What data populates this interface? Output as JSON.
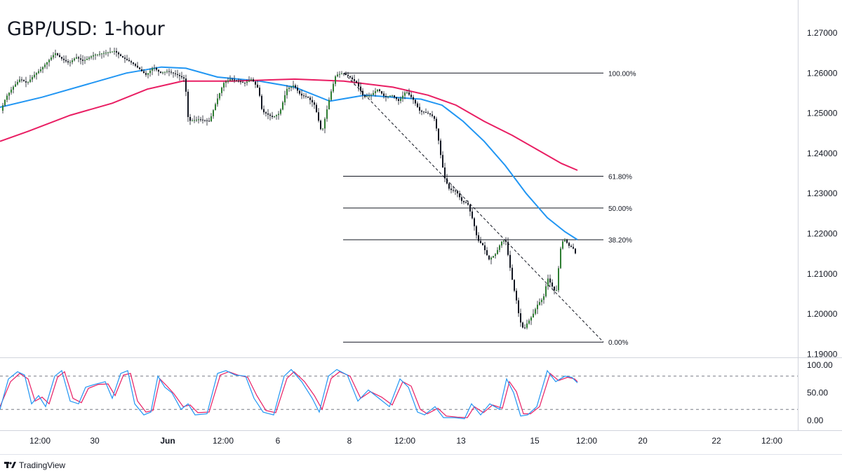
{
  "title": "GBP/USD: 1-hour",
  "brand": {
    "name": "TradingView",
    "logo_icon": "tradingview-logo-icon"
  },
  "chart_data": {
    "type": "line",
    "symbol": "GBP/USD",
    "timeframe": "1-hour",
    "price_axis": {
      "ticks": [
        "1.27000",
        "1.26000",
        "1.25000",
        "1.24000",
        "1.23000",
        "1.22000",
        "1.21000",
        "1.20000",
        "1.19000"
      ],
      "range": [
        1.1885,
        1.2783
      ]
    },
    "time_axis": {
      "ticks": [
        "12:00",
        "30",
        "Jun",
        "12:00",
        "6",
        "8",
        "12:00",
        "13",
        "15",
        "12:00",
        "20",
        "22",
        "12:00"
      ],
      "major_ticks": [
        "30",
        "Jun",
        "6",
        "8",
        "13",
        "15",
        "20",
        "22"
      ]
    },
    "price_path": [
      [
        0,
        1.2495
      ],
      [
        10,
        1.254
      ],
      [
        20,
        1.2565
      ],
      [
        30,
        1.2585
      ],
      [
        40,
        1.2575
      ],
      [
        50,
        1.2595
      ],
      [
        60,
        1.261
      ],
      [
        70,
        1.263
      ],
      [
        80,
        1.265
      ],
      [
        90,
        1.2635
      ],
      [
        100,
        1.2625
      ],
      [
        110,
        1.264
      ],
      [
        120,
        1.263
      ],
      [
        135,
        1.2645
      ],
      [
        150,
        1.265
      ],
      [
        165,
        1.2655
      ],
      [
        175,
        1.264
      ],
      [
        190,
        1.2625
      ],
      [
        200,
        1.261
      ],
      [
        210,
        1.2595
      ],
      [
        220,
        1.2615
      ],
      [
        230,
        1.26
      ],
      [
        240,
        1.2605
      ],
      [
        255,
        1.2595
      ],
      [
        265,
        1.2585
      ],
      [
        270,
        1.248
      ],
      [
        285,
        1.2485
      ],
      [
        300,
        1.248
      ],
      [
        310,
        1.253
      ],
      [
        320,
        1.2575
      ],
      [
        330,
        1.2585
      ],
      [
        340,
        1.258
      ],
      [
        350,
        1.2575
      ],
      [
        360,
        1.2585
      ],
      [
        370,
        1.256
      ],
      [
        375,
        1.2505
      ],
      [
        390,
        1.249
      ],
      [
        400,
        1.25
      ],
      [
        410,
        1.256
      ],
      [
        420,
        1.257
      ],
      [
        430,
        1.2545
      ],
      [
        440,
        1.254
      ],
      [
        450,
        1.252
      ],
      [
        460,
        1.245
      ],
      [
        465,
        1.249
      ],
      [
        472,
        1.2545
      ],
      [
        480,
        1.2595
      ],
      [
        490,
        1.26
      ],
      [
        500,
        1.259
      ],
      [
        510,
        1.2575
      ],
      [
        520,
        1.254
      ],
      [
        530,
        1.2545
      ],
      [
        540,
        1.256
      ],
      [
        550,
        1.254
      ],
      [
        560,
        1.2545
      ],
      [
        570,
        1.253
      ],
      [
        580,
        1.2555
      ],
      [
        590,
        1.2535
      ],
      [
        600,
        1.2505
      ],
      [
        612,
        1.25
      ],
      [
        620,
        1.249
      ],
      [
        625,
        1.245
      ],
      [
        630,
        1.239
      ],
      [
        635,
        1.234
      ],
      [
        642,
        1.231
      ],
      [
        652,
        1.2305
      ],
      [
        660,
        1.228
      ],
      [
        668,
        1.2275
      ],
      [
        676,
        1.223
      ],
      [
        682,
        1.2185
      ],
      [
        690,
        1.217
      ],
      [
        698,
        1.2135
      ],
      [
        708,
        1.215
      ],
      [
        716,
        1.218
      ],
      [
        722,
        1.2185
      ],
      [
        728,
        1.212
      ],
      [
        733,
        1.207
      ],
      [
        738,
        1.203
      ],
      [
        742,
        1.1985
      ],
      [
        748,
        1.196
      ],
      [
        752,
        1.1975
      ],
      [
        760,
        1.1995
      ],
      [
        768,
        1.2025
      ],
      [
        776,
        1.204
      ],
      [
        782,
        1.209
      ],
      [
        788,
        1.207
      ],
      [
        794,
        1.205
      ],
      [
        800,
        1.216
      ],
      [
        805,
        1.219
      ],
      [
        812,
        1.217
      ],
      [
        818,
        1.2165
      ],
      [
        823,
        1.2145
      ]
    ],
    "moving_averages": [
      {
        "color": "#2196f3",
        "points": [
          [
            0,
            1.2515
          ],
          [
            60,
            1.254
          ],
          [
            120,
            1.257
          ],
          [
            180,
            1.26
          ],
          [
            230,
            1.2615
          ],
          [
            265,
            1.2612
          ],
          [
            310,
            1.259
          ],
          [
            370,
            1.258
          ],
          [
            420,
            1.2565
          ],
          [
            470,
            1.253
          ],
          [
            520,
            1.2545
          ],
          [
            560,
            1.254
          ],
          [
            600,
            1.2535
          ],
          [
            630,
            1.252
          ],
          [
            660,
            1.248
          ],
          [
            690,
            1.243
          ],
          [
            720,
            1.237
          ],
          [
            750,
            1.23
          ],
          [
            780,
            1.224
          ],
          [
            805,
            1.2205
          ],
          [
            823,
            1.2185
          ]
        ]
      },
      {
        "color": "#e91e63",
        "points": [
          [
            0,
            1.243
          ],
          [
            40,
            1.2455
          ],
          [
            100,
            1.2495
          ],
          [
            160,
            1.2525
          ],
          [
            210,
            1.256
          ],
          [
            260,
            1.258
          ],
          [
            330,
            1.258
          ],
          [
            420,
            1.2585
          ],
          [
            490,
            1.258
          ],
          [
            560,
            1.2565
          ],
          [
            610,
            1.2545
          ],
          [
            650,
            1.252
          ],
          [
            690,
            1.248
          ],
          [
            730,
            1.2445
          ],
          [
            770,
            1.2405
          ],
          [
            800,
            1.2375
          ],
          [
            823,
            1.2358
          ]
        ]
      }
    ],
    "fibonacci": {
      "color": "#131722",
      "levels": [
        {
          "label": "100.00%",
          "price": 1.26
        },
        {
          "label": "61.80%",
          "price": 1.2343
        },
        {
          "label": "50.00%",
          "price": 1.2264
        },
        {
          "label": "38.20%",
          "price": 1.2185
        },
        {
          "label": "0.00%",
          "price": 1.193
        }
      ],
      "trend_line": {
        "from": [
          490,
          1.26
        ],
        "to": [
          860,
          1.193
        ]
      }
    },
    "oscillator": {
      "type": "stochastic",
      "ticks": [
        "100.00",
        "50.00",
        "0.00"
      ],
      "range": [
        0,
        100
      ],
      "overbought": 80,
      "oversold": 20,
      "k_color": "#2196f3",
      "d_color": "#e91e63",
      "k": [
        [
          0,
          20
        ],
        [
          12,
          75
        ],
        [
          25,
          88
        ],
        [
          35,
          82
        ],
        [
          45,
          30
        ],
        [
          55,
          45
        ],
        [
          65,
          25
        ],
        [
          78,
          80
        ],
        [
          88,
          90
        ],
        [
          100,
          35
        ],
        [
          112,
          30
        ],
        [
          122,
          60
        ],
        [
          135,
          65
        ],
        [
          150,
          70
        ],
        [
          160,
          40
        ],
        [
          172,
          85
        ],
        [
          182,
          90
        ],
        [
          192,
          30
        ],
        [
          205,
          10
        ],
        [
          215,
          15
        ],
        [
          225,
          80
        ],
        [
          235,
          60
        ],
        [
          245,
          50
        ],
        [
          258,
          20
        ],
        [
          268,
          30
        ],
        [
          278,
          10
        ],
        [
          295,
          12
        ],
        [
          310,
          85
        ],
        [
          322,
          90
        ],
        [
          335,
          82
        ],
        [
          350,
          80
        ],
        [
          362,
          40
        ],
        [
          375,
          15
        ],
        [
          390,
          10
        ],
        [
          405,
          80
        ],
        [
          415,
          92
        ],
        [
          430,
          70
        ],
        [
          445,
          40
        ],
        [
          455,
          15
        ],
        [
          468,
          80
        ],
        [
          480,
          92
        ],
        [
          495,
          82
        ],
        [
          510,
          35
        ],
        [
          525,
          55
        ],
        [
          540,
          40
        ],
        [
          555,
          25
        ],
        [
          570,
          75
        ],
        [
          582,
          60
        ],
        [
          595,
          15
        ],
        [
          605,
          10
        ],
        [
          620,
          25
        ],
        [
          632,
          5
        ],
        [
          648,
          5
        ],
        [
          662,
          3
        ],
        [
          672,
          30
        ],
        [
          685,
          10
        ],
        [
          698,
          30
        ],
        [
          712,
          20
        ],
        [
          722,
          75
        ],
        [
          732,
          50
        ],
        [
          742,
          8
        ],
        [
          752,
          10
        ],
        [
          765,
          25
        ],
        [
          780,
          90
        ],
        [
          792,
          70
        ],
        [
          805,
          80
        ],
        [
          815,
          78
        ],
        [
          823,
          68
        ]
      ],
      "d": [
        [
          0,
          25
        ],
        [
          15,
          70
        ],
        [
          28,
          85
        ],
        [
          40,
          75
        ],
        [
          50,
          35
        ],
        [
          60,
          42
        ],
        [
          70,
          30
        ],
        [
          82,
          78
        ],
        [
          92,
          88
        ],
        [
          104,
          40
        ],
        [
          116,
          32
        ],
        [
          126,
          58
        ],
        [
          140,
          65
        ],
        [
          154,
          66
        ],
        [
          164,
          45
        ],
        [
          176,
          82
        ],
        [
          186,
          85
        ],
        [
          196,
          35
        ],
        [
          208,
          15
        ],
        [
          218,
          18
        ],
        [
          228,
          75
        ],
        [
          238,
          62
        ],
        [
          248,
          48
        ],
        [
          261,
          25
        ],
        [
          271,
          28
        ],
        [
          282,
          14
        ],
        [
          298,
          15
        ],
        [
          314,
          82
        ],
        [
          326,
          88
        ],
        [
          339,
          82
        ],
        [
          353,
          78
        ],
        [
          366,
          45
        ],
        [
          379,
          18
        ],
        [
          393,
          14
        ],
        [
          409,
          76
        ],
        [
          419,
          88
        ],
        [
          434,
          70
        ],
        [
          448,
          45
        ],
        [
          459,
          20
        ],
        [
          472,
          76
        ],
        [
          484,
          88
        ],
        [
          499,
          80
        ],
        [
          514,
          40
        ],
        [
          528,
          52
        ],
        [
          544,
          42
        ],
        [
          559,
          28
        ],
        [
          574,
          70
        ],
        [
          586,
          62
        ],
        [
          599,
          20
        ],
        [
          609,
          12
        ],
        [
          624,
          22
        ],
        [
          636,
          8
        ],
        [
          652,
          6
        ],
        [
          666,
          5
        ],
        [
          676,
          25
        ],
        [
          689,
          14
        ],
        [
          702,
          28
        ],
        [
          716,
          22
        ],
        [
          726,
          70
        ],
        [
          736,
          52
        ],
        [
          746,
          12
        ],
        [
          756,
          12
        ],
        [
          769,
          25
        ],
        [
          784,
          85
        ],
        [
          796,
          72
        ],
        [
          809,
          78
        ],
        [
          819,
          75
        ],
        [
          823,
          70
        ]
      ]
    }
  }
}
